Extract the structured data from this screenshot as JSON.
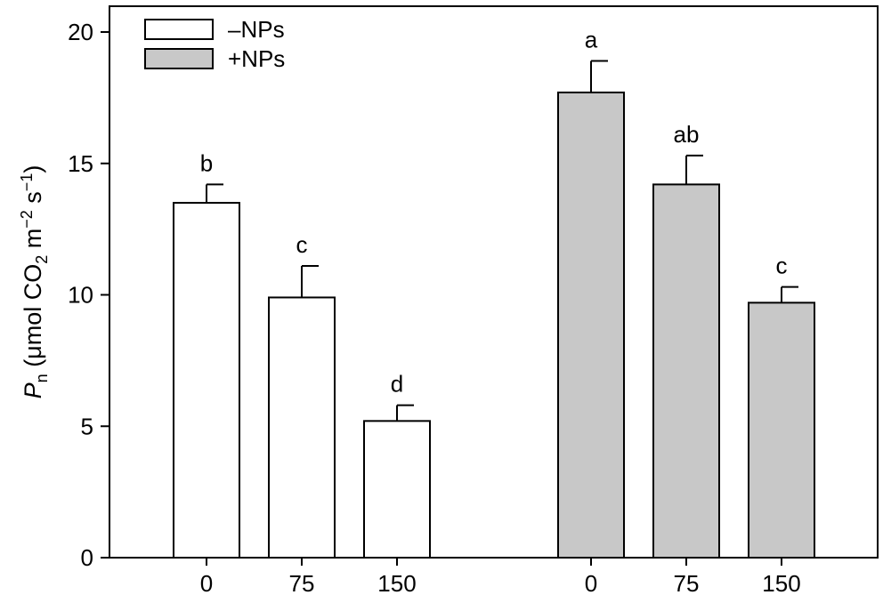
{
  "chart_data": {
    "type": "bar",
    "ylabel": {
      "symbol": "P",
      "symbol_sub": "n",
      "unit_open": " (μmol CO",
      "unit_sub_2": "2",
      "unit_mid": " m",
      "unit_sup_m": "−2",
      "unit_s": " s",
      "unit_sup_s": "−1",
      "unit_close": ")"
    },
    "ylim": [
      0,
      20
    ],
    "yticks": [
      0,
      5,
      10,
      15,
      20
    ],
    "grid": false,
    "legend_position": "top-left",
    "legend": [
      {
        "label": "–NPs",
        "color": "#ffffff"
      },
      {
        "label": "+NPs",
        "color": "#c8c8c8"
      }
    ],
    "groups": [
      {
        "series_index": 0,
        "bars": [
          {
            "category": "0",
            "value": 13.5,
            "error": 0.7,
            "label": "b"
          },
          {
            "category": "75",
            "value": 9.9,
            "error": 1.2,
            "label": "c"
          },
          {
            "category": "150",
            "value": 5.2,
            "error": 0.6,
            "label": "d"
          }
        ]
      },
      {
        "series_index": 1,
        "bars": [
          {
            "category": "0",
            "value": 17.7,
            "error": 1.2,
            "label": "a"
          },
          {
            "category": "75",
            "value": 14.2,
            "error": 1.1,
            "label": "ab"
          },
          {
            "category": "150",
            "value": 9.7,
            "error": 0.6,
            "label": "c"
          }
        ]
      }
    ]
  }
}
